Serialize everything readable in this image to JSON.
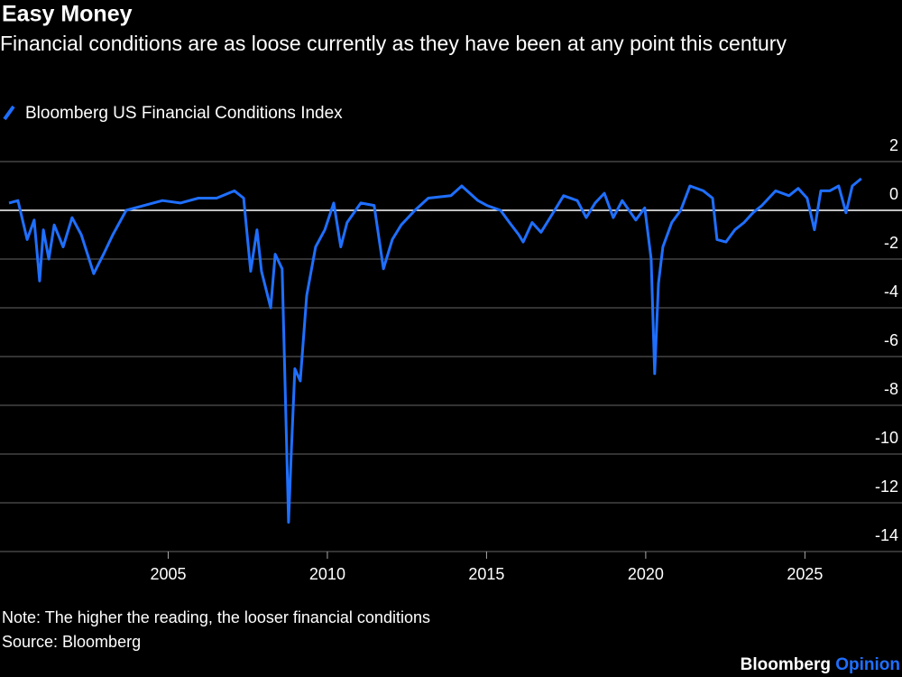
{
  "chart_data": {
    "type": "line",
    "title": "Easy Money",
    "subtitle": "Financial conditions are as loose currently as they have been at any point this century",
    "note": "Note: The higher the reading, the looser financial conditions",
    "source": "Source: Bloomberg",
    "brand": "Bloomberg",
    "brand_suffix": "Opinion",
    "x": [
      2000.0,
      2000.28,
      2000.57,
      2000.79,
      2000.96,
      2001.08,
      2001.25,
      2001.42,
      2001.7,
      2001.98,
      2002.27,
      2002.66,
      2002.97,
      2003.26,
      2003.68,
      2004.25,
      2004.82,
      2005.38,
      2005.95,
      2006.52,
      2007.08,
      2007.37,
      2007.59,
      2007.79,
      2007.93,
      2008.22,
      2008.36,
      2008.58,
      2008.78,
      2008.87,
      2008.98,
      2009.15,
      2009.35,
      2009.63,
      2009.92,
      2010.2,
      2010.42,
      2010.62,
      2011.05,
      2011.47,
      2011.76,
      2012.04,
      2012.32,
      2012.75,
      2013.17,
      2013.88,
      2014.22,
      2014.73,
      2015.01,
      2015.44,
      2015.72,
      2016.01,
      2016.15,
      2016.43,
      2016.71,
      2017.14,
      2017.42,
      2017.85,
      2018.13,
      2018.41,
      2018.7,
      2018.98,
      2019.26,
      2019.69,
      2019.97,
      2020.17,
      2020.28,
      2020.4,
      2020.54,
      2020.82,
      2021.1,
      2021.39,
      2021.81,
      2022.1,
      2022.24,
      2022.52,
      2022.8,
      2023.09,
      2023.37,
      2023.65,
      2024.08,
      2024.5,
      2024.79,
      2025.07,
      2025.3,
      2025.5,
      2025.78,
      2026.06,
      2026.29,
      2026.49,
      2026.77
    ],
    "series": [
      {
        "name": "Bloomberg US Financial Conditions Index",
        "color": "#1f6fff",
        "values": [
          0.3,
          0.4,
          -1.2,
          -0.4,
          -2.9,
          -0.8,
          -2.0,
          -0.6,
          -1.5,
          -0.3,
          -1.0,
          -2.6,
          -1.8,
          -1.0,
          0.0,
          0.2,
          0.4,
          0.3,
          0.5,
          0.5,
          0.8,
          0.5,
          -2.5,
          -0.8,
          -2.5,
          -4.0,
          -1.8,
          -2.4,
          -12.8,
          -9.8,
          -6.5,
          -7.0,
          -3.5,
          -1.5,
          -0.8,
          0.3,
          -1.5,
          -0.5,
          0.3,
          0.2,
          -2.4,
          -1.2,
          -0.6,
          0.0,
          0.5,
          0.6,
          1.0,
          0.4,
          0.2,
          0.0,
          -0.5,
          -1.0,
          -1.3,
          -0.5,
          -0.9,
          0.0,
          0.6,
          0.4,
          -0.3,
          0.3,
          0.7,
          -0.3,
          0.4,
          -0.4,
          0.1,
          -2.0,
          -6.7,
          -3.0,
          -1.5,
          -0.5,
          0.0,
          1.0,
          0.8,
          0.5,
          -1.2,
          -1.3,
          -0.8,
          -0.5,
          -0.1,
          0.2,
          0.8,
          0.6,
          0.9,
          0.5,
          -0.8,
          0.8,
          0.8,
          1.0,
          -0.1,
          1.0,
          1.3
        ]
      }
    ],
    "xlim": [
      2000,
      2027.2
    ],
    "xticks": [
      2005,
      2010,
      2015,
      2020,
      2025
    ],
    "ylim": [
      -14,
      2
    ],
    "yticks": [
      2,
      0,
      -2,
      -4,
      -6,
      -8,
      -10,
      -12,
      -14
    ],
    "grid": true
  }
}
